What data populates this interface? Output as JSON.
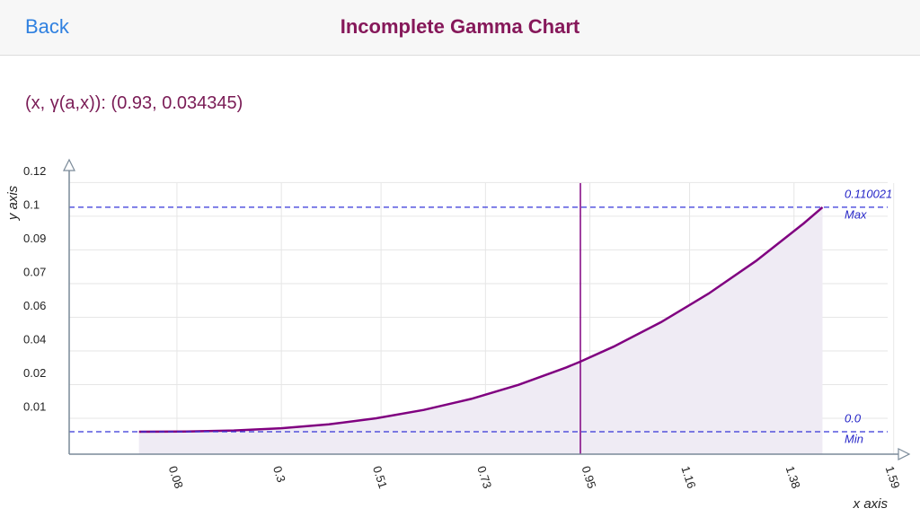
{
  "header": {
    "back": "Back",
    "title": "Incomplete Gamma Chart"
  },
  "readout": "(x, γ(a,x)): (0.93, 0.034345)",
  "chart_data": {
    "type": "line",
    "x_label": "x axis",
    "y_label": "y axis",
    "x": [
      0,
      0.1,
      0.2,
      0.3,
      0.4,
      0.5,
      0.6,
      0.7,
      0.8,
      0.9,
      0.93,
      1.0,
      1.1,
      1.2,
      1.3,
      1.4,
      1.44
    ],
    "y": [
      0,
      0.0001,
      0.0006,
      0.0017,
      0.0036,
      0.0066,
      0.0107,
      0.0161,
      0.023,
      0.0315,
      0.034345,
      0.0417,
      0.0537,
      0.0677,
      0.0837,
      0.102,
      0.110021
    ],
    "color": "#800080",
    "fill": "#efebf4",
    "cursor_x": 0.93,
    "max": {
      "value": 0.110021,
      "label": "0.110021",
      "name": "Max"
    },
    "min": {
      "value": 0,
      "label": "0.0",
      "name": "Min"
    },
    "xlim": [
      -0.147,
      1.6
    ],
    "ylim": [
      -0.011,
      0.128
    ],
    "xticks": [
      0.08,
      0.3,
      0.51,
      0.73,
      0.95,
      1.16,
      1.38,
      1.59
    ],
    "yticks": [
      {
        "value": 0.0066,
        "label": "0.01"
      },
      {
        "value": 0.0231,
        "label": "0.02"
      },
      {
        "value": 0.0396,
        "label": "0.04"
      },
      {
        "value": 0.0561,
        "label": "0.06"
      },
      {
        "value": 0.0726,
        "label": "0.07"
      },
      {
        "value": 0.0891,
        "label": "0.09"
      },
      {
        "value": 0.1056,
        "label": "0.1"
      },
      {
        "value": 0.1221,
        "label": "0.12"
      }
    ],
    "grid": true
  }
}
